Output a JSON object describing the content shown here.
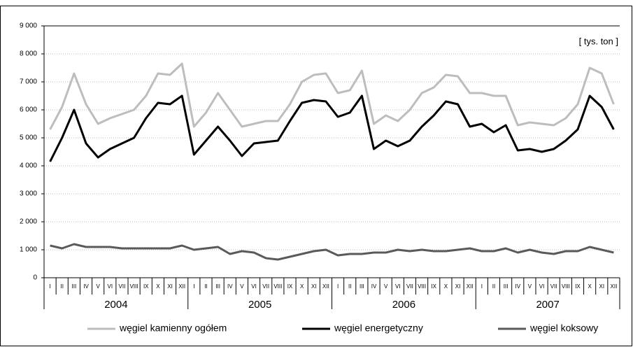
{
  "chart_data": {
    "type": "line",
    "annotation": "[ tys. ton ]",
    "categories": [
      "I",
      "II",
      "III",
      "IV",
      "V",
      "VI",
      "VII",
      "VIII",
      "IX",
      "X",
      "XI",
      "XII",
      "I",
      "II",
      "III",
      "IV",
      "V",
      "VI",
      "VII",
      "VIII",
      "IX",
      "X",
      "XI",
      "XII",
      "I",
      "II",
      "III",
      "IV",
      "V",
      "VI",
      "VII",
      "VIII",
      "IX",
      "X",
      "XI",
      "XII",
      "I",
      "II",
      "III",
      "IV",
      "V",
      "VI",
      "VII",
      "VIII",
      "IX",
      "X",
      "XI",
      "XII"
    ],
    "groups": [
      "2004",
      "2005",
      "2006",
      "2007"
    ],
    "series": [
      {
        "name": "węgiel kamienny ogółem",
        "color": "#bdbdbd",
        "values": [
          5300,
          6100,
          7300,
          6200,
          5500,
          5700,
          5850,
          6000,
          6500,
          7300,
          7250,
          7650,
          5400,
          5900,
          6600,
          6000,
          5400,
          5500,
          5600,
          5600,
          6200,
          7000,
          7250,
          7300,
          6600,
          6700,
          7400,
          5500,
          5800,
          5600,
          6000,
          6600,
          6800,
          7250,
          7200,
          6600,
          6600,
          6500,
          6500,
          5450,
          5550,
          5500,
          5450,
          5700,
          6200,
          7500,
          7300,
          6200
        ]
      },
      {
        "name": "węgiel energetyczny",
        "color": "#000000",
        "values": [
          4150,
          5000,
          6000,
          4800,
          4300,
          4600,
          4800,
          5000,
          5700,
          6250,
          6200,
          6500,
          4400,
          4900,
          5400,
          4900,
          4350,
          4800,
          4850,
          4900,
          5600,
          6250,
          6350,
          6300,
          5750,
          5900,
          6500,
          4600,
          4900,
          4700,
          4900,
          5400,
          5800,
          6300,
          6200,
          5400,
          5500,
          5200,
          5450,
          4550,
          4600,
          4500,
          4600,
          4900,
          5300,
          6500,
          6100,
          5300
        ]
      },
      {
        "name": "węgiel koksowy",
        "color": "#5a5a5a",
        "values": [
          1150,
          1050,
          1200,
          1100,
          1100,
          1100,
          1050,
          1050,
          1050,
          1050,
          1050,
          1150,
          1000,
          1050,
          1100,
          850,
          950,
          900,
          700,
          650,
          750,
          850,
          950,
          1000,
          800,
          850,
          850,
          900,
          900,
          1000,
          950,
          1000,
          950,
          950,
          1000,
          1050,
          950,
          950,
          1050,
          900,
          1000,
          900,
          850,
          950,
          950,
          1100,
          1000,
          900
        ]
      }
    ],
    "ylim": [
      0,
      9000
    ],
    "yticks": [
      0,
      {
        "value": 1000,
        "label": "1 000"
      },
      {
        "value": 2000,
        "label": "2 000"
      },
      {
        "value": 3000,
        "label": "3 000"
      },
      {
        "value": 4000,
        "label": "4 000"
      },
      {
        "value": 5000,
        "label": "5 000"
      },
      {
        "value": 6000,
        "label": "6 000"
      },
      {
        "value": 7000,
        "label": "7 000"
      },
      {
        "value": 8000,
        "label": "8 000"
      },
      {
        "value": 9000,
        "label": "9 000"
      }
    ],
    "grid": true
  }
}
